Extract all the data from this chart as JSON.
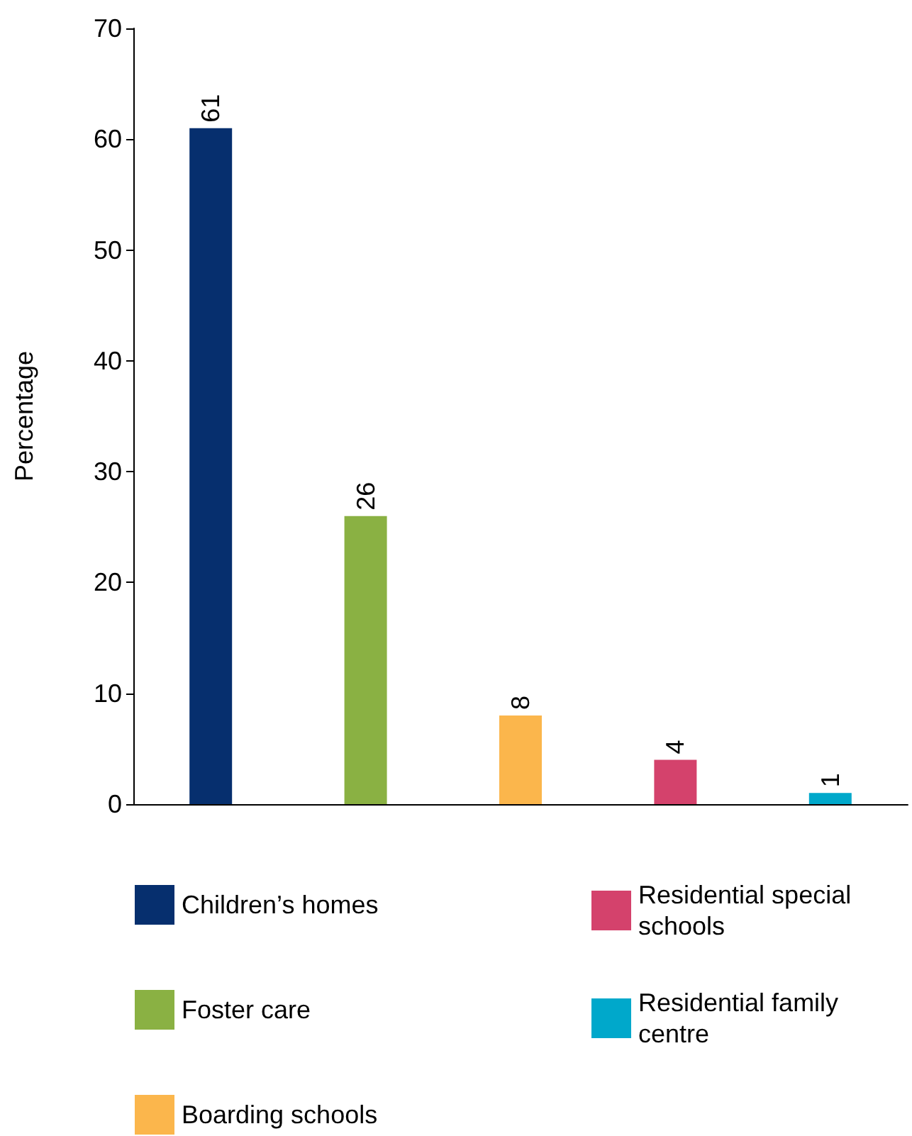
{
  "chart_data": {
    "type": "bar",
    "ylabel": "Percentage",
    "categories": [
      null,
      null,
      null,
      null,
      null
    ],
    "series": [
      {
        "name": "Children’s homes",
        "color": "#062f6e",
        "values": [
          61,
          null,
          null,
          null,
          null
        ]
      },
      {
        "name": "Foster care",
        "color": "#8ab143",
        "values": [
          null,
          26,
          null,
          null,
          null
        ]
      },
      {
        "name": "Boarding schools",
        "color": "#fbb64c",
        "values": [
          null,
          null,
          8,
          null,
          null
        ]
      },
      {
        "name": "Residential special schools",
        "color": "#d4426c",
        "values": [
          null,
          null,
          null,
          4,
          null
        ]
      },
      {
        "name": "Residential family centre",
        "color": "#00a8cb",
        "values": [
          null,
          null,
          null,
          null,
          1
        ]
      }
    ],
    "ylim": [
      0,
      70
    ],
    "yticks": [
      0,
      10,
      20,
      30,
      40,
      50,
      60,
      70
    ],
    "data_labels": true,
    "grid": false,
    "legend": "bottom"
  }
}
